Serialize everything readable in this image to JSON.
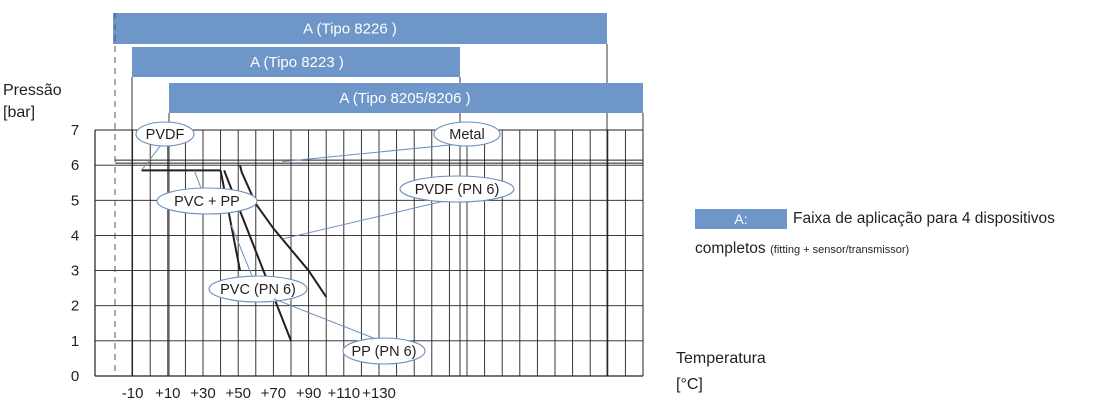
{
  "chart_data": {
    "type": "line",
    "ylabel_line1": "Pressão",
    "ylabel_line2": "[bar]",
    "xlabel_line1": "Temperatura",
    "xlabel_line2": "[°C]",
    "xlim": [
      -15,
      135
    ],
    "ylim": [
      0,
      7
    ],
    "x_tick_labels": [
      {
        "x": -10,
        "label": "-10"
      },
      {
        "x": 10,
        "label": "+10"
      },
      {
        "x": 30,
        "label": "+30"
      },
      {
        "x": 50,
        "label": "+50"
      },
      {
        "x": 70,
        "label": "+70"
      },
      {
        "x": 90,
        "label": "+90"
      },
      {
        "x": 110,
        "label": "+110"
      },
      {
        "x": 130,
        "label": "+130"
      }
    ],
    "y_ticks": [
      0,
      1,
      2,
      3,
      4,
      5,
      6,
      7
    ],
    "grid": true,
    "reference_line_y": 6.1,
    "series": [
      {
        "name": "PVC + PP",
        "points": [
          [
            -5,
            5.85
          ],
          [
            40,
            5.85
          ]
        ]
      },
      {
        "name": "PVC (PN 6)",
        "points": [
          [
            40,
            5.85
          ],
          [
            51,
            3.0
          ]
        ]
      },
      {
        "name": "PP (PN 6)",
        "points": [
          [
            42,
            5.85
          ],
          [
            80,
            1.0
          ]
        ]
      },
      {
        "name": "PVDF (PN 6)",
        "points": [
          [
            51,
            6.0
          ],
          [
            52,
            5.8
          ],
          [
            60,
            4.9
          ],
          [
            70,
            4.2
          ],
          [
            80,
            3.6
          ],
          [
            90,
            3.0
          ],
          [
            100,
            2.25
          ]
        ]
      }
    ],
    "ranges": [
      {
        "label": "A (Tipo 8226 )",
        "from": -10,
        "to": 120
      },
      {
        "label": "A (Tipo 8223 )",
        "from": -10,
        "to": 80
      },
      {
        "label": "A (Tipo 8205/8206  )",
        "from": 0,
        "to": 130
      }
    ],
    "callouts": [
      {
        "label": "PVDF",
        "target": [
          -5,
          5.85
        ]
      },
      {
        "label": "Metal",
        "target": [
          75,
          6.1
        ]
      },
      {
        "label": "PVC + PP",
        "target": [
          25,
          5.85
        ]
      },
      {
        "label": "PVDF (PN 6)",
        "target": [
          75,
          3.9
        ]
      },
      {
        "label": "PVC (PN 6)",
        "target": [
          46,
          4.3
        ]
      },
      {
        "label": "PP (PN 6)",
        "target": [
          70,
          2.2
        ]
      }
    ],
    "colors": {
      "range_fill": "#6e96c9",
      "callout_stroke": "#6e8fbd",
      "series_line": "#231f20",
      "grid_line": "#231f20"
    }
  },
  "legend": {
    "swatch_label": "A:",
    "text_line1": "Faixa de aplicação para 4 dispositivos",
    "text_line2": "completos",
    "text_line2_small": "(fitting + sensor/transmissor)"
  }
}
